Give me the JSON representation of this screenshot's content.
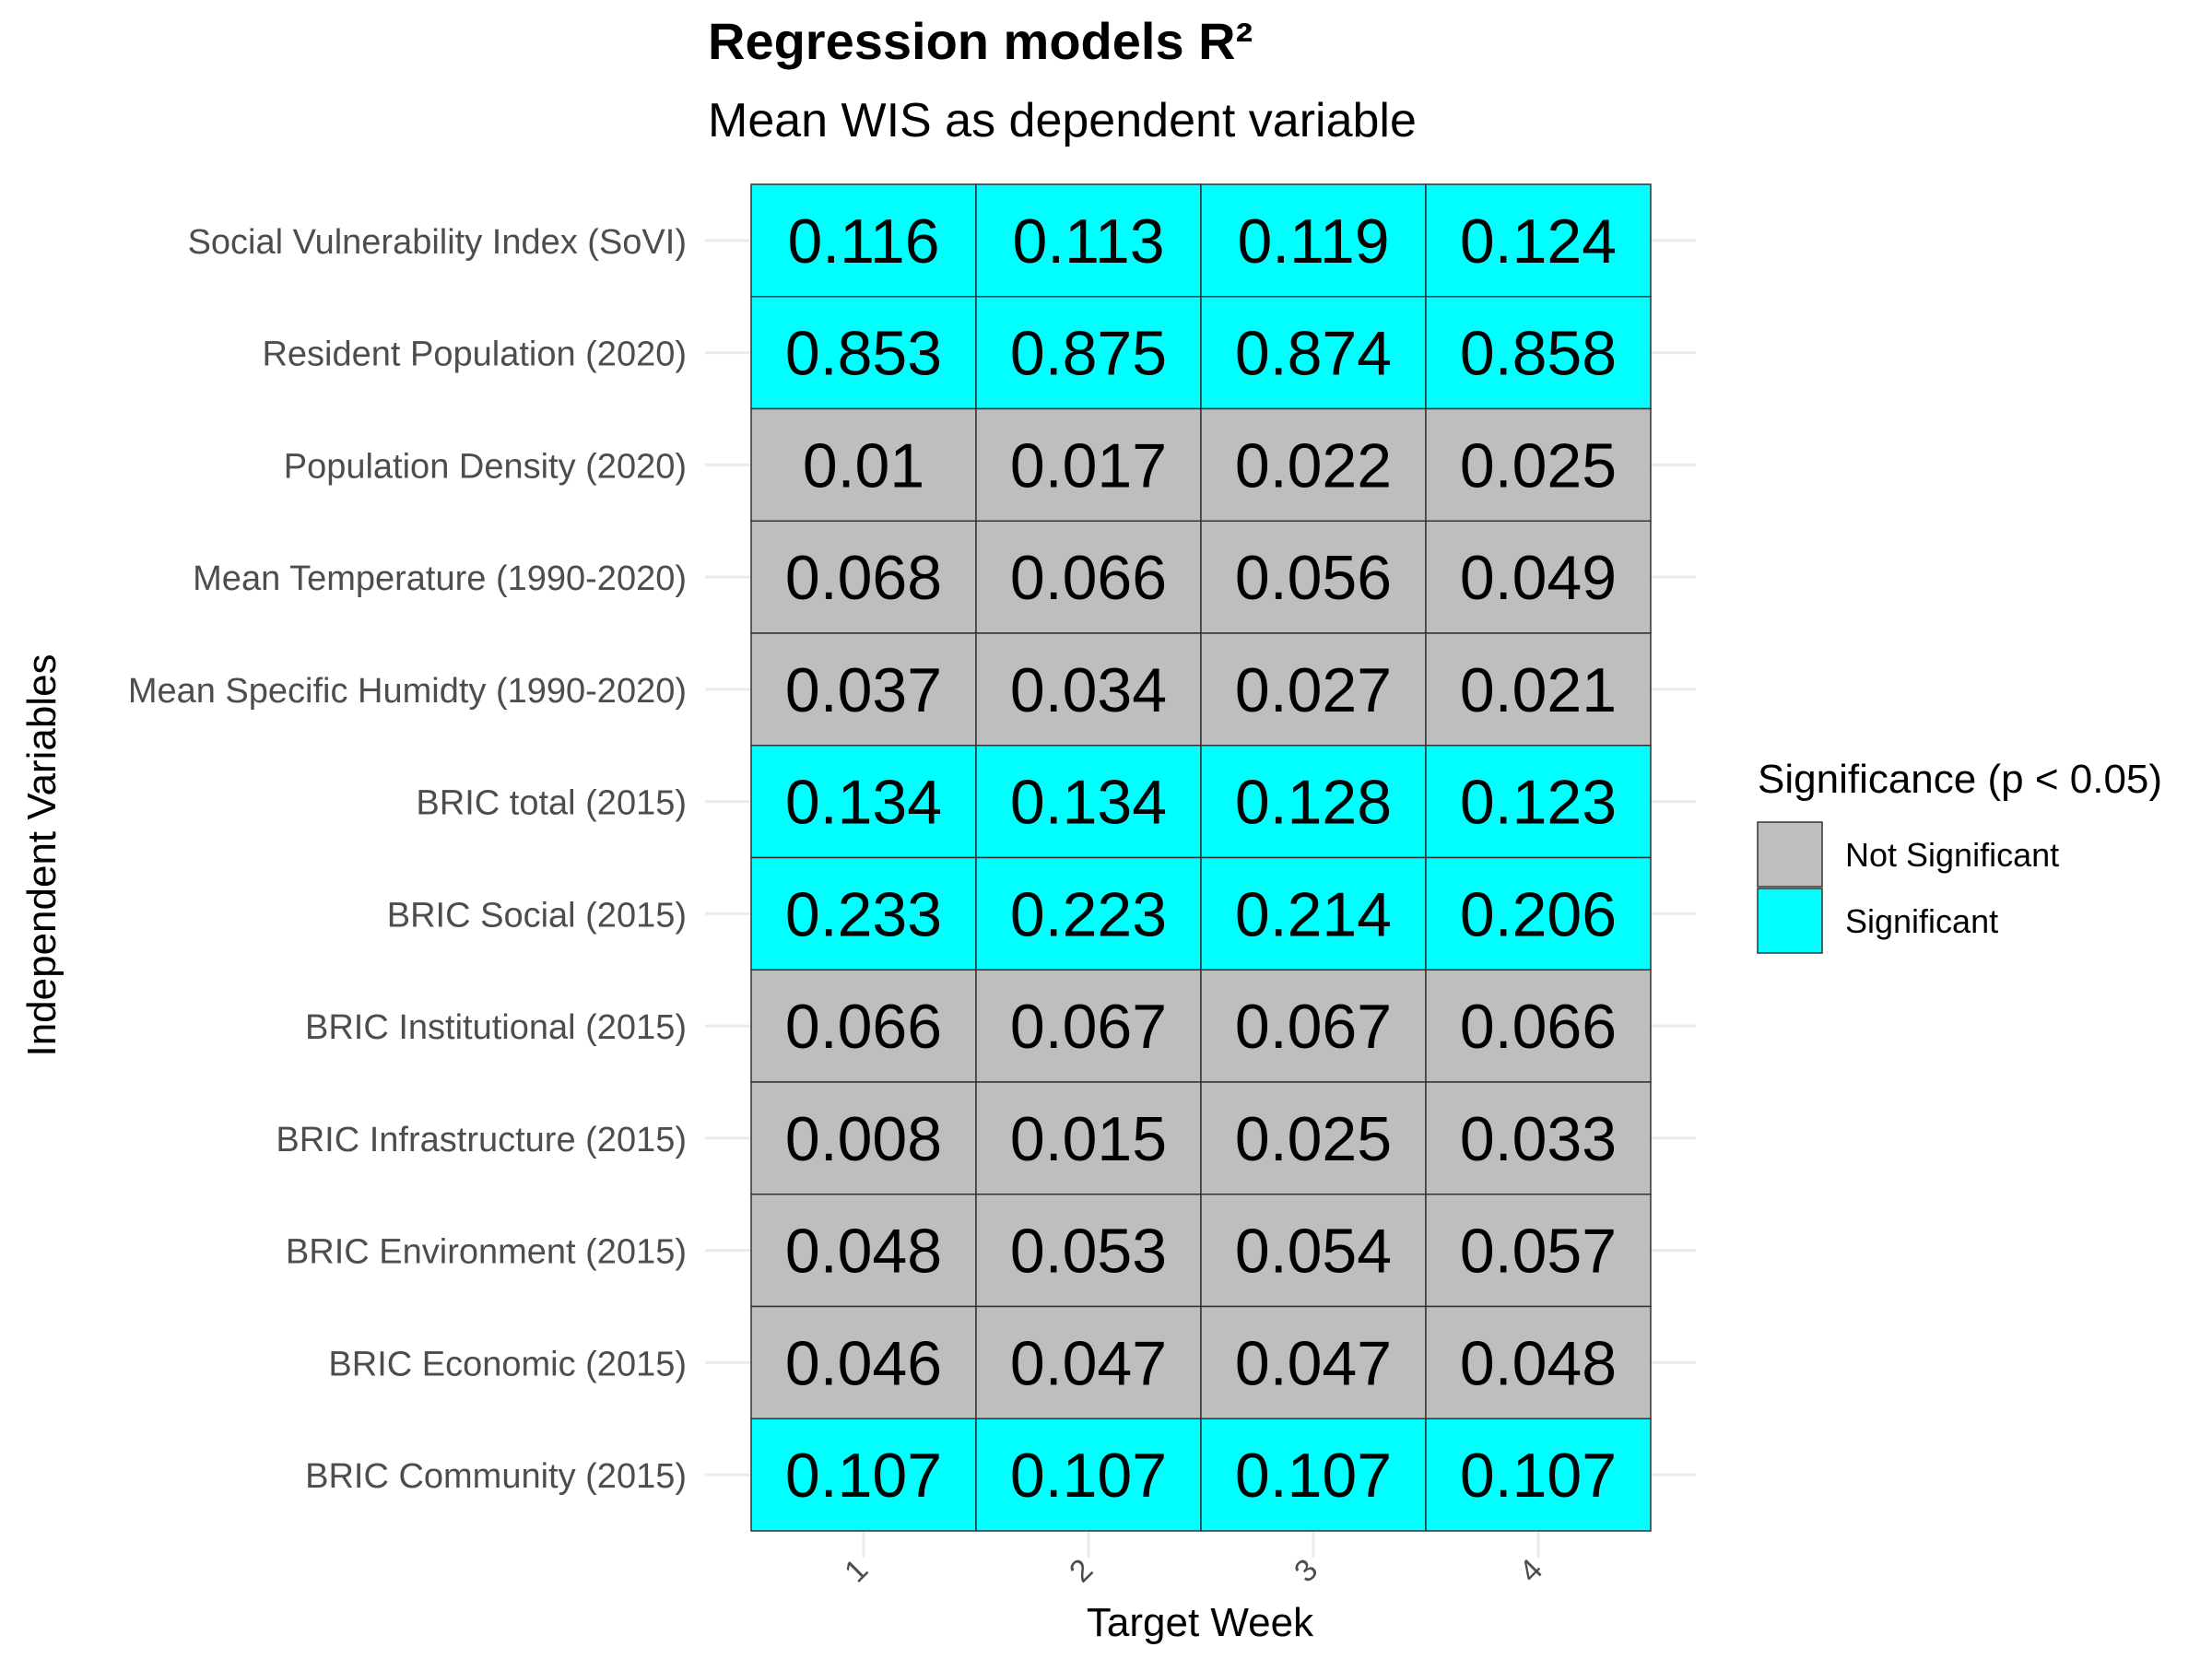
{
  "chart_data": {
    "type": "heatmap",
    "title": "Regression models R²",
    "subtitle": "Mean WIS as dependent variable",
    "xlabel": "Target Week",
    "ylabel": "Independent Variables",
    "x": [
      "1",
      "2",
      "3",
      "4"
    ],
    "y": [
      "Social Vulnerability Index (SoVI)",
      "Resident Population (2020)",
      "Population Density (2020)",
      "Mean Temperature (1990-2020)",
      "Mean Specific Humidty (1990-2020)",
      "BRIC total (2015)",
      "BRIC Social (2015)",
      "BRIC Institutional (2015)",
      "BRIC Infrastructure (2015)",
      "BRIC Environment (2015)",
      "BRIC Economic (2015)",
      "BRIC Community (2015)"
    ],
    "values": [
      [
        "0.116",
        "0.113",
        "0.119",
        "0.124"
      ],
      [
        "0.853",
        "0.875",
        "0.874",
        "0.858"
      ],
      [
        "0.01",
        "0.017",
        "0.022",
        "0.025"
      ],
      [
        "0.068",
        "0.066",
        "0.056",
        "0.049"
      ],
      [
        "0.037",
        "0.034",
        "0.027",
        "0.021"
      ],
      [
        "0.134",
        "0.134",
        "0.128",
        "0.123"
      ],
      [
        "0.233",
        "0.223",
        "0.214",
        "0.206"
      ],
      [
        "0.066",
        "0.067",
        "0.067",
        "0.066"
      ],
      [
        "0.008",
        "0.015",
        "0.025",
        "0.033"
      ],
      [
        "0.048",
        "0.053",
        "0.054",
        "0.057"
      ],
      [
        "0.046",
        "0.047",
        "0.047",
        "0.048"
      ],
      [
        "0.107",
        "0.107",
        "0.107",
        "0.107"
      ]
    ],
    "significant": [
      true,
      true,
      false,
      false,
      false,
      true,
      true,
      false,
      false,
      false,
      false,
      true
    ],
    "legend": {
      "title": "Significance (p < 0.05)",
      "placement": "right",
      "items": [
        {
          "label": "Not Significant",
          "color": "#bebebe"
        },
        {
          "label": "Significant",
          "color": "#00ffff"
        }
      ]
    },
    "grid": true
  },
  "colors": {
    "significant": "#00ffff",
    "not_significant": "#bebebe",
    "cell_border": "#333333",
    "gridline": "#ebebeb"
  }
}
